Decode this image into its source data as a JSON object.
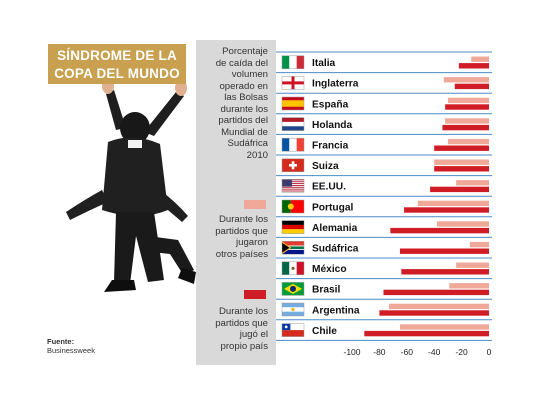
{
  "title_line1": "SÍNDROME DE LA",
  "title_line2": "COPA DEL MUNDO",
  "source_label": "Fuente:",
  "source_name": "Businessweek",
  "description_lines": [
    "Porcentaje",
    "de caída del",
    "volumen",
    "operado en",
    "las Bolsas",
    "durante los",
    "partidos del",
    "Mundial de",
    "Sudáfrica",
    "2010"
  ],
  "colors": {
    "accent": "#c8a050",
    "other_countries": "#f0a898",
    "own_country": "#d01c24",
    "row_line": "#4a8bc8",
    "panel_gray": "#d9d9d9"
  },
  "legend": [
    {
      "lines": [
        "Durante los",
        "partidos que",
        "jugaron",
        "otros países"
      ],
      "color": "#f0a898"
    },
    {
      "lines": [
        "Durante los",
        "partidos que",
        "jugó el",
        "propio país"
      ],
      "color": "#d01c24"
    }
  ],
  "chart_data": {
    "type": "bar",
    "orientation": "horizontal",
    "categories": [
      "Italia",
      "Inglaterra",
      "España",
      "Holanda",
      "Francia",
      "Suiza",
      "EE.UU.",
      "Portugal",
      "Alemania",
      "Sudáfrica",
      "México",
      "Brasil",
      "Argentina",
      "Chile"
    ],
    "flags": [
      "italy",
      "england",
      "spain",
      "netherlands",
      "france",
      "switzerland",
      "usa",
      "portugal",
      "germany",
      "south-africa",
      "mexico",
      "brazil",
      "argentina",
      "chile"
    ],
    "series": [
      {
        "name": "Durante los partidos que jugaron otros países",
        "values": [
          -13,
          -33,
          -30,
          -32,
          -30,
          -40,
          -24,
          -52,
          -38,
          -14,
          -24,
          -29,
          -73,
          -65
        ]
      },
      {
        "name": "Durante los partidos que jugó el propio país",
        "values": [
          -22,
          -25,
          -32,
          -34,
          -40,
          -40,
          -43,
          -62,
          -72,
          -65,
          -64,
          -77,
          -80,
          -91
        ]
      }
    ],
    "xlim": [
      -105,
      0
    ],
    "xticks": [
      -100,
      -80,
      -60,
      -40,
      -20,
      0
    ],
    "xtick_labels": [
      "-100",
      "-80",
      "-60",
      "-40",
      "-20",
      "0"
    ],
    "grid": false,
    "legend_position": "left"
  }
}
